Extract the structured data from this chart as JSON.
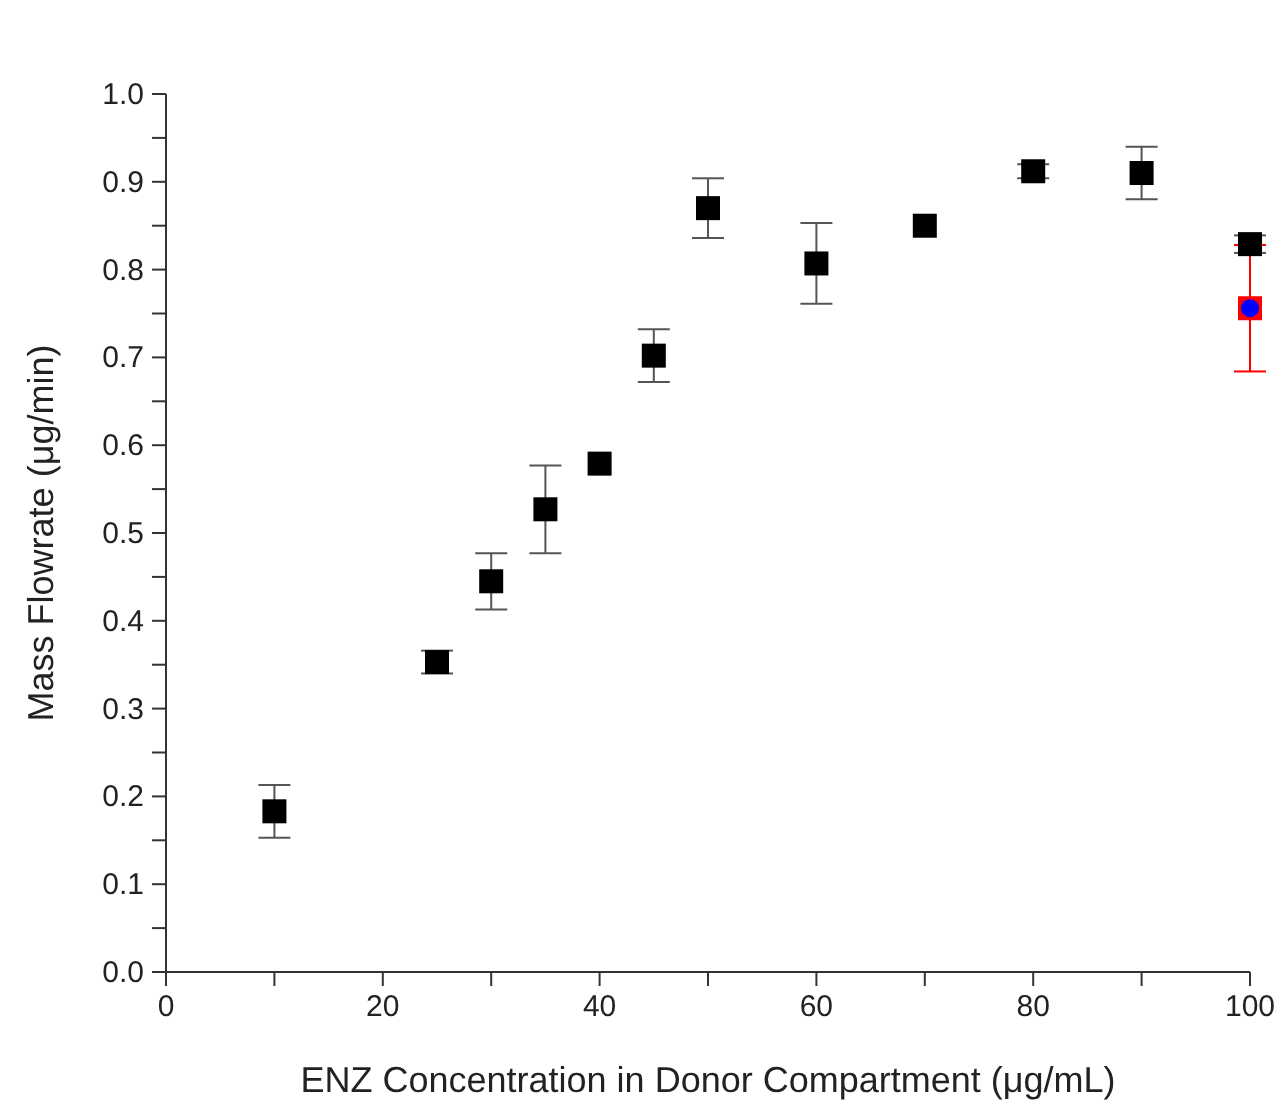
{
  "chart_data": {
    "type": "scatter",
    "xlabel": "ENZ Concentration in Donor Compartment (μg/mL)",
    "ylabel": "Mass Flowrate (μg/min)",
    "x": [
      10,
      25,
      30,
      35,
      40,
      45,
      50,
      60,
      70,
      80,
      90,
      100
    ],
    "series": [
      {
        "color": "#000000",
        "marker": "square",
        "values": [
          0.183,
          0.353,
          0.445,
          0.527,
          0.579,
          0.702,
          0.87,
          0.807,
          0.85,
          0.912,
          0.91,
          0.829
        ],
        "errors": [
          0.03,
          0.013,
          0.032,
          0.05,
          null,
          0.03,
          0.034,
          0.046,
          null,
          0.008,
          0.03,
          0.01
        ]
      },
      {
        "color": "#ff0000",
        "marker": "square",
        "x": [
          100
        ],
        "values": [
          0.756
        ],
        "errors": [
          0.072
        ]
      },
      {
        "color": "#0000ff",
        "marker": "circle",
        "x": [
          100
        ],
        "values": [
          0.756
        ]
      }
    ],
    "xlim": [
      0,
      100
    ],
    "xticks": [
      0,
      {
        "value": 10,
        "label": null
      },
      20,
      {
        "value": 30,
        "label": null
      },
      40,
      {
        "value": 50,
        "label": null
      },
      60,
      {
        "value": 70,
        "label": null
      },
      80,
      {
        "value": 90,
        "label": null
      },
      100
    ],
    "ylim": [
      0,
      1
    ],
    "yticks": [
      {
        "value": 0,
        "label": "0.0"
      },
      {
        "value": 0.05,
        "label": null
      },
      {
        "value": 0.1,
        "label": "0.1"
      },
      {
        "value": 0.15,
        "label": null
      },
      {
        "value": 0.2,
        "label": "0.2"
      },
      {
        "value": 0.25,
        "label": null
      },
      {
        "value": 0.3,
        "label": "0.3"
      },
      {
        "value": 0.35,
        "label": null
      },
      {
        "value": 0.4,
        "label": "0.4"
      },
      {
        "value": 0.45,
        "label": null
      },
      {
        "value": 0.5,
        "label": "0.5"
      },
      {
        "value": 0.55,
        "label": null
      },
      {
        "value": 0.6,
        "label": "0.6"
      },
      {
        "value": 0.65,
        "label": null
      },
      {
        "value": 0.7,
        "label": "0.7"
      },
      {
        "value": 0.75,
        "label": null
      },
      {
        "value": 0.8,
        "label": "0.8"
      },
      {
        "value": 0.85,
        "label": null
      },
      {
        "value": 0.9,
        "label": "0.9"
      },
      {
        "value": 0.95,
        "label": null
      },
      {
        "value": 1,
        "label": "1.0"
      }
    ],
    "grid": false,
    "legend": false
  }
}
